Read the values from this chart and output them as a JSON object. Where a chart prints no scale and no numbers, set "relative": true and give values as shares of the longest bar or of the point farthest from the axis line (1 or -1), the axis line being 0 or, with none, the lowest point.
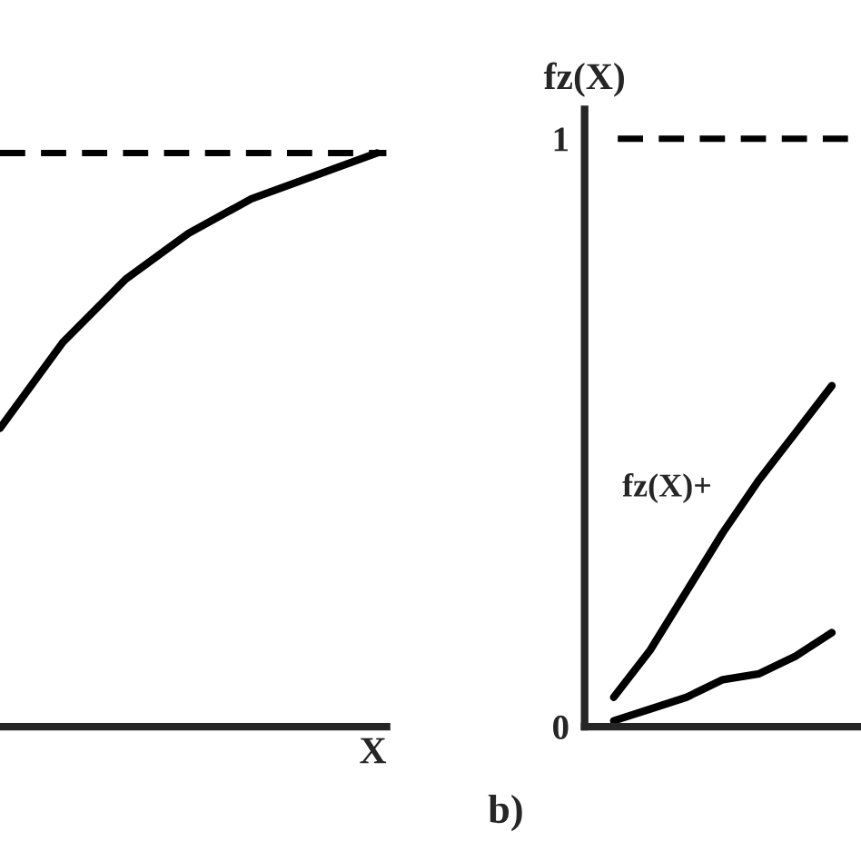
{
  "chart_data": [
    {
      "type": "line",
      "relative": true,
      "xlabel": "X",
      "categories": [
        null,
        null,
        null,
        null,
        null,
        null,
        null
      ],
      "series": [
        {
          "color": "#000000",
          "values": [
            0.52,
            0.67,
            0.78,
            0.86,
            0.92,
            0.96,
            1.0
          ]
        }
      ],
      "ref_lines": [
        {
          "axis": "y",
          "value": 1,
          "line_style": "dashed",
          "color": "#000000"
        }
      ],
      "tick_labels": false,
      "grid": false,
      "legend": false,
      "line_style": "solid",
      "marker": "none"
    },
    {
      "type": "line",
      "ylabel": "fz(X)",
      "categories": [
        null,
        null,
        null,
        null,
        null,
        null,
        null
      ],
      "ylim": [
        0,
        1.05
      ],
      "yticks": [
        0,
        1
      ],
      "series": [
        {
          "name": "fz(X)+",
          "color": "#000000",
          "values": [
            0.05,
            0.13,
            0.23,
            0.33,
            0.42,
            0.5,
            0.58
          ]
        },
        {
          "color": "#000000",
          "values": [
            0.01,
            0.03,
            0.05,
            0.08,
            0.09,
            0.12,
            0.16
          ]
        }
      ],
      "ref_lines": [
        {
          "axis": "y",
          "value": 1,
          "line_style": "dashed",
          "color": "#000000"
        }
      ],
      "annotations": [
        "b)"
      ],
      "tick_labels": "y",
      "grid": false,
      "legend": false,
      "line_style": "solid",
      "marker": "none"
    }
  ]
}
